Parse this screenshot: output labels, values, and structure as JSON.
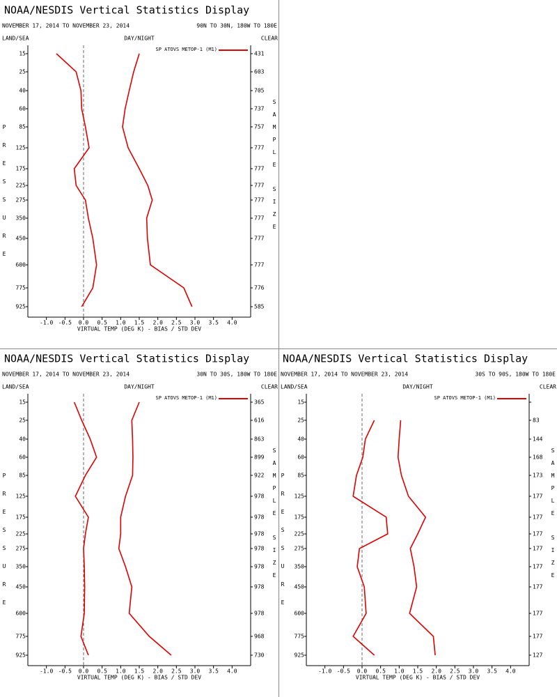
{
  "chart_data": [
    {
      "type": "line",
      "title": "NOAA/NESDIS Vertical Statistics Display",
      "subtitle": "NOVEMBER 17, 2014 TO NOVEMBER 23, 2014",
      "region": "90N TO 30N, 180W TO 180E",
      "left_header": "LAND/SEA",
      "center_header": "DAY/NIGHT",
      "right_header": "CLEAR",
      "y_label": "PRESSURE",
      "y2_label": "SAMPLE SIZE",
      "x_label": "VIRTUAL TEMP (DEG K) - BIAS / STD DEV",
      "categories": [
        15,
        25,
        40,
        60,
        85,
        125,
        175,
        225,
        275,
        350,
        450,
        600,
        775,
        925
      ],
      "sample_size": [
        431,
        603,
        705,
        737,
        757,
        777,
        777,
        777,
        777,
        777,
        777,
        777,
        776,
        585
      ],
      "series": [
        {
          "name": "SP ATOVS METOP-1 (M1)",
          "color": "#e00000",
          "bias": [
            -0.73,
            -0.2,
            -0.07,
            -0.05,
            0.05,
            0.15,
            -0.25,
            -0.2,
            0.05,
            0.13,
            0.25,
            0.35,
            0.25,
            -0.05
          ],
          "std_dev": [
            1.5,
            1.35,
            1.23,
            1.12,
            1.05,
            1.2,
            1.5,
            1.73,
            1.85,
            1.7,
            1.72,
            1.8,
            2.7,
            2.92
          ]
        }
      ],
      "xlim": [
        -1.5,
        4.5
      ],
      "xticks": [
        {
          "value": -1,
          "label": "-1.0"
        },
        -0.5,
        {
          "value": 0,
          "label": "0.0"
        },
        0.5,
        {
          "value": 1,
          "label": "1.0"
        },
        1.5,
        {
          "value": 2,
          "label": "2.0"
        },
        2.5,
        {
          "value": 3,
          "label": "3.0"
        },
        3.5,
        {
          "value": 4,
          "label": "4.0"
        }
      ],
      "reference_line": {
        "x": 0,
        "color": "#666666",
        "dashed": true
      }
    },
    {
      "type": "line",
      "title": "NOAA/NESDIS Vertical Statistics Display",
      "subtitle": "NOVEMBER 17, 2014 TO NOVEMBER 23, 2014",
      "region": "30N TO 30S, 180W TO 180E",
      "left_header": "LAND/SEA",
      "center_header": "DAY/NIGHT",
      "right_header": "CLEAR",
      "y_label": "PRESSURE",
      "y2_label": "SAMPLE SIZE",
      "x_label": "VIRTUAL TEMP (DEG K) - BIAS / STD DEV",
      "categories": [
        15,
        25,
        40,
        60,
        85,
        125,
        175,
        225,
        275,
        350,
        450,
        600,
        775,
        925
      ],
      "sample_size": [
        365,
        616,
        863,
        899,
        922,
        978,
        978,
        978,
        978,
        978,
        978,
        978,
        968,
        730
      ],
      "series": [
        {
          "name": "SP ATOVS METOP-1 (M1)",
          "color": "#e00000",
          "bias": [
            -0.25,
            -0.05,
            0.18,
            0.35,
            0.05,
            -0.22,
            0.13,
            0.05,
            0,
            0.02,
            0.03,
            0.02,
            -0.07,
            0.13
          ],
          "std_dev": [
            1.5,
            1.3,
            1.32,
            1.33,
            1.32,
            1.13,
            1.0,
            1.0,
            0.95,
            1.13,
            1.3,
            1.23,
            1.77,
            2.36
          ]
        }
      ],
      "xlim": [
        -1.5,
        4.5
      ],
      "xticks": [
        {
          "value": -1,
          "label": "-1.0"
        },
        -0.5,
        {
          "value": 0,
          "label": "0.0"
        },
        0.5,
        {
          "value": 1,
          "label": "1.0"
        },
        1.5,
        {
          "value": 2,
          "label": "2.0"
        },
        2.5,
        {
          "value": 3,
          "label": "3.0"
        },
        3.5,
        {
          "value": 4,
          "label": "4.0"
        }
      ],
      "reference_line": {
        "x": 0,
        "color": "#666666",
        "dashed": true
      }
    },
    {
      "type": "line",
      "title": "NOAA/NESDIS Vertical Statistics Display",
      "subtitle": "NOVEMBER 17, 2014 TO NOVEMBER 23, 2014",
      "region": "30S TO 90S, 180W TO 180E",
      "left_header": "LAND/SEA",
      "center_header": "DAY/NIGHT",
      "right_header": "CLEAR",
      "y_label": "PRESSURE",
      "y2_label": "SAMPLE SIZE",
      "x_label": "VIRTUAL TEMP (DEG K) - BIAS / STD DEV",
      "categories": [
        15,
        25,
        40,
        60,
        85,
        125,
        175,
        225,
        275,
        350,
        450,
        600,
        775,
        925
      ],
      "sample_size": [
        null,
        83,
        144,
        168,
        173,
        177,
        177,
        177,
        177,
        177,
        177,
        177,
        177,
        127
      ],
      "series": [
        {
          "name": "SP ATOVS METOP-1 (M1)",
          "color": "#e00000",
          "bias": [
            null,
            0.33,
            0.09,
            0.02,
            -0.15,
            -0.24,
            0.65,
            0.69,
            -0.07,
            -0.13,
            0.06,
            0.11,
            -0.24,
            0.33
          ],
          "std_dev": [
            null,
            1.04,
            1.0,
            0.97,
            1.06,
            1.25,
            1.71,
            1.5,
            1.3,
            1.4,
            1.47,
            1.28,
            1.92,
            1.97
          ]
        }
      ],
      "xlim": [
        -1.5,
        4.5
      ],
      "xticks": [
        {
          "value": -1,
          "label": "-1.0"
        },
        -0.5,
        {
          "value": 0,
          "label": "0.0"
        },
        0.5,
        {
          "value": 1,
          "label": "1.0"
        },
        1.5,
        {
          "value": 2,
          "label": "2.0"
        },
        2.5,
        {
          "value": 3,
          "label": "3.0"
        },
        3.5,
        {
          "value": 4,
          "label": "4.0"
        }
      ],
      "reference_line": {
        "x": 0,
        "color": "#666666",
        "dashed": true
      }
    }
  ]
}
